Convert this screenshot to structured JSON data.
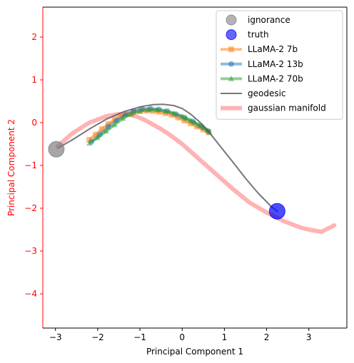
{
  "chart_data": {
    "type": "scatter",
    "title": "",
    "xlabel": "Principal Component 1",
    "ylabel": "Principal Component 2",
    "xlim": [
      -3.3,
      3.9
    ],
    "ylim": [
      -4.8,
      2.7
    ],
    "x_ticks": [
      -3,
      -2,
      -1,
      0,
      1,
      2,
      3
    ],
    "y_ticks": [
      -4,
      -3,
      -2,
      -1,
      0,
      1,
      2
    ],
    "tick_labels_x": [
      "−3",
      "−2",
      "−1",
      "0",
      "1",
      "2",
      "3"
    ],
    "tick_labels_y": [
      "−4",
      "−3",
      "−2",
      "−1",
      "0",
      "1",
      "2"
    ],
    "y_axis_color": "#ff0000",
    "grid": false,
    "legend_position": "top-right",
    "points": [
      {
        "name": "ignorance",
        "x": -2.98,
        "y": -0.62,
        "color": "#808080",
        "alpha": 0.7
      },
      {
        "name": "truth",
        "x": 2.25,
        "y": -2.07,
        "color": "#0000ff",
        "alpha": 0.7
      }
    ],
    "series": [
      {
        "name": "gaussian manifold",
        "kind": "line",
        "color": "#ff9999",
        "width": 6,
        "alpha": 0.75,
        "x": [
          -2.95,
          -2.6,
          -2.2,
          -1.8,
          -1.5,
          -1.3,
          -1.1,
          -0.9,
          -0.7,
          -0.5,
          -0.3,
          0.0,
          0.4,
          0.8,
          1.2,
          1.6,
          2.0,
          2.4,
          2.8,
          3.0,
          3.3,
          3.6
        ],
        "y": [
          -0.55,
          -0.25,
          0.0,
          0.15,
          0.2,
          0.2,
          0.15,
          0.07,
          -0.04,
          -0.15,
          -0.28,
          -0.5,
          -0.85,
          -1.2,
          -1.55,
          -1.87,
          -2.1,
          -2.3,
          -2.45,
          -2.5,
          -2.55,
          -2.4
        ]
      },
      {
        "name": "LLaMA-2 7b",
        "kind": "markers-line",
        "marker": "square",
        "color": "#ff7f0e",
        "alpha": 0.5,
        "x": [
          -2.2,
          -2.05,
          -1.9,
          -1.75,
          -1.6,
          -1.45,
          -1.3,
          -1.15,
          -1.0,
          -0.85,
          -0.7,
          -0.55,
          -0.4,
          -0.25,
          -0.1,
          0.05,
          0.2,
          0.35,
          0.5,
          0.62
        ],
        "y": [
          -0.4,
          -0.28,
          -0.15,
          -0.03,
          0.07,
          0.15,
          0.2,
          0.25,
          0.27,
          0.28,
          0.27,
          0.25,
          0.22,
          0.18,
          0.12,
          0.05,
          -0.02,
          -0.09,
          -0.16,
          -0.22
        ]
      },
      {
        "name": "LLaMA-2 13b",
        "kind": "markers-line",
        "marker": "circle",
        "color": "#1f77b4",
        "alpha": 0.5,
        "x": [
          -2.15,
          -1.95,
          -1.75,
          -1.55,
          -1.35,
          -1.15,
          -0.95,
          -0.75,
          -0.55,
          -0.35,
          -0.15,
          0.05,
          0.25,
          0.45,
          0.62
        ],
        "y": [
          -0.45,
          -0.28,
          -0.1,
          0.05,
          0.18,
          0.27,
          0.32,
          0.33,
          0.31,
          0.27,
          0.2,
          0.12,
          0.03,
          -0.08,
          -0.2
        ]
      },
      {
        "name": "LLaMA-2 70b",
        "kind": "markers-line",
        "marker": "triangle",
        "color": "#2ca02c",
        "alpha": 0.5,
        "x": [
          -2.2,
          -2.0,
          -1.8,
          -1.6,
          -1.4,
          -1.2,
          -1.0,
          -0.8,
          -0.6,
          -0.4,
          -0.2,
          0.0,
          0.1,
          0.2,
          0.3,
          0.4,
          0.5,
          0.6,
          0.65
        ],
        "y": [
          -0.48,
          -0.35,
          -0.2,
          -0.05,
          0.1,
          0.2,
          0.27,
          0.3,
          0.3,
          0.27,
          0.22,
          0.15,
          0.1,
          0.05,
          0.0,
          -0.06,
          -0.12,
          -0.18,
          -0.23
        ]
      },
      {
        "name": "geodesic",
        "kind": "line",
        "color": "#555555",
        "width": 2,
        "alpha": 0.8,
        "x": [
          -2.95,
          -2.6,
          -2.2,
          -1.8,
          -1.4,
          -1.0,
          -0.7,
          -0.45,
          -0.2,
          0.0,
          0.2,
          0.4,
          0.55,
          0.7,
          0.9,
          1.2,
          1.5,
          1.8,
          2.1,
          2.25
        ],
        "y": [
          -0.6,
          -0.4,
          -0.15,
          0.08,
          0.25,
          0.37,
          0.42,
          0.43,
          0.4,
          0.33,
          0.2,
          0.03,
          -0.12,
          -0.3,
          -0.55,
          -0.92,
          -1.3,
          -1.65,
          -1.95,
          -2.07
        ]
      }
    ],
    "legend": [
      {
        "label": "ignorance",
        "type": "dot",
        "color": "#808080"
      },
      {
        "label": "truth",
        "type": "dot",
        "color": "#0000ff"
      },
      {
        "label": "LLaMA-2 7b",
        "type": "line-marker",
        "marker": "square",
        "color": "#ff7f0e"
      },
      {
        "label": "LLaMA-2 13b",
        "type": "line-marker",
        "marker": "circle",
        "color": "#1f77b4"
      },
      {
        "label": "LLaMA-2 70b",
        "type": "line-marker",
        "marker": "triangle",
        "color": "#2ca02c"
      },
      {
        "label": "geodesic",
        "type": "line",
        "color": "#555555"
      },
      {
        "label": "gaussian manifold",
        "type": "thick-line",
        "color": "#ff9999"
      }
    ]
  }
}
